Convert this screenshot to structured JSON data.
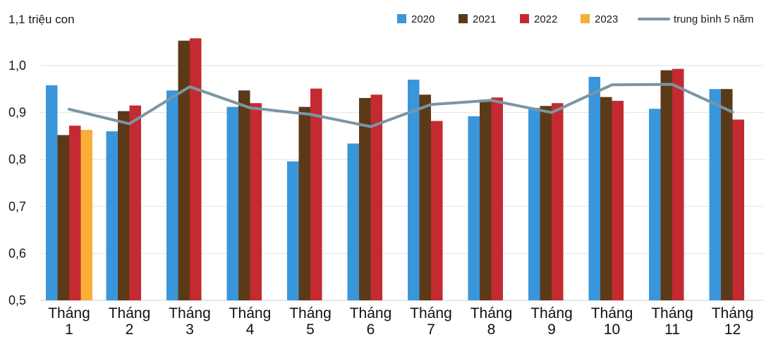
{
  "chart_data": {
    "type": "bar",
    "unit_label": "1,1 triệu con",
    "ylim": [
      0.5,
      1.1
    ],
    "yticks": [
      "1,0",
      "0,9",
      "0,8",
      "0,7",
      "0,6",
      "0,5"
    ],
    "categories": [
      [
        "Tháng",
        "1"
      ],
      [
        "Tháng",
        "2"
      ],
      [
        "Tháng",
        "3"
      ],
      [
        "Tháng",
        "4"
      ],
      [
        "Tháng",
        "5"
      ],
      [
        "Tháng",
        "6"
      ],
      [
        "Tháng",
        "7"
      ],
      [
        "Tháng",
        "8"
      ],
      [
        "Tháng",
        "9"
      ],
      [
        "Tháng",
        "10"
      ],
      [
        "Tháng",
        "11"
      ],
      [
        "Tháng",
        "12"
      ]
    ],
    "series": [
      {
        "name": "2020",
        "color": "#3a96db",
        "values": [
          0.958,
          0.86,
          0.947,
          0.912,
          0.796,
          0.834,
          0.97,
          0.892,
          0.91,
          0.976,
          0.908,
          0.95
        ]
      },
      {
        "name": "2021",
        "color": "#5c3a17",
        "values": [
          0.852,
          0.903,
          1.053,
          0.947,
          0.912,
          0.931,
          0.938,
          0.924,
          0.914,
          0.933,
          0.99,
          0.95
        ]
      },
      {
        "name": "2022",
        "color": "#c42a31",
        "values": [
          0.872,
          0.915,
          1.058,
          0.92,
          0.951,
          0.938,
          0.882,
          0.932,
          0.92,
          0.925,
          0.993,
          0.885
        ]
      },
      {
        "name": "2023",
        "color": "#f8ae39",
        "values": [
          0.863,
          null,
          null,
          null,
          null,
          null,
          null,
          null,
          null,
          null,
          null,
          null
        ]
      }
    ],
    "line": {
      "name": "trung bình 5 năm",
      "color": "#7b95a3",
      "values": [
        0.907,
        0.876,
        0.955,
        0.91,
        0.896,
        0.87,
        0.917,
        0.926,
        0.9,
        0.959,
        0.96,
        0.901
      ]
    },
    "grid": true,
    "legend_position": "top-right"
  }
}
